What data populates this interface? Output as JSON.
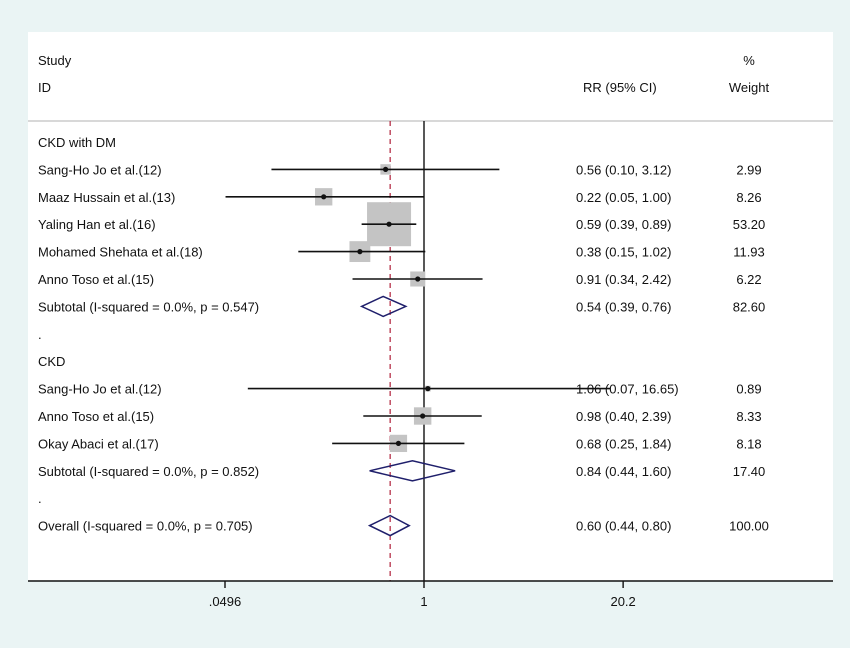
{
  "chart_data": {
    "type": "forest",
    "scale": "log",
    "headers": {
      "study": "Study",
      "id": "ID",
      "rr": "RR (95% CI)",
      "pct": "%",
      "weight": "Weight"
    },
    "xticks": [
      {
        "value": 0.0496,
        "label": ".0496"
      },
      {
        "value": 1,
        "label": "1"
      },
      {
        "value": 20.2,
        "label": "20.2"
      }
    ],
    "null_line": 1,
    "overall_line": 0.6,
    "rows": [
      {
        "kind": "group",
        "label": "CKD with DM"
      },
      {
        "kind": "study",
        "label": "Sang-Ho Jo et al.(12)",
        "rr": 0.56,
        "lo": 0.1,
        "hi": 3.12,
        "text": "0.56 (0.10, 3.12)",
        "weight": "2.99"
      },
      {
        "kind": "study",
        "label": "Maaz Hussain et al.(13)",
        "rr": 0.22,
        "lo": 0.05,
        "hi": 1.0,
        "text": "0.22 (0.05, 1.00)",
        "weight": "8.26"
      },
      {
        "kind": "study",
        "label": "Yaling Han et al.(16)",
        "rr": 0.59,
        "lo": 0.39,
        "hi": 0.89,
        "text": "0.59 (0.39, 0.89)",
        "weight": "53.20"
      },
      {
        "kind": "study",
        "label": "Mohamed Shehata et al.(18)",
        "rr": 0.38,
        "lo": 0.15,
        "hi": 1.02,
        "text": "0.38 (0.15, 1.02)",
        "weight": "11.93"
      },
      {
        "kind": "study",
        "label": "Anno Toso et al.(15)",
        "rr": 0.91,
        "lo": 0.34,
        "hi": 2.42,
        "text": "0.91 (0.34, 2.42)",
        "weight": "6.22"
      },
      {
        "kind": "summary",
        "label": "Subtotal  (I-squared = 0.0%, p = 0.547)",
        "rr": 0.54,
        "lo": 0.39,
        "hi": 0.76,
        "text": "0.54 (0.39, 0.76)",
        "weight": "82.60"
      },
      {
        "kind": "gap",
        "label": "."
      },
      {
        "kind": "group",
        "label": "CKD"
      },
      {
        "kind": "study",
        "label": "Sang-Ho Jo et al.(12)",
        "rr": 1.06,
        "lo": 0.07,
        "hi": 16.65,
        "text": "1.06 (0.07, 16.65)",
        "weight": "0.89"
      },
      {
        "kind": "study",
        "label": "Anno Toso et al.(15)",
        "rr": 0.98,
        "lo": 0.4,
        "hi": 2.39,
        "text": "0.98 (0.40, 2.39)",
        "weight": "8.33"
      },
      {
        "kind": "study",
        "label": "Okay Abaci et al.(17)",
        "rr": 0.68,
        "lo": 0.25,
        "hi": 1.84,
        "text": "0.68 (0.25, 1.84)",
        "weight": "8.18"
      },
      {
        "kind": "summary",
        "label": "Subtotal  (I-squared = 0.0%, p = 0.852)",
        "rr": 0.84,
        "lo": 0.44,
        "hi": 1.6,
        "text": "0.84 (0.44, 1.60)",
        "weight": "17.40"
      },
      {
        "kind": "gap",
        "label": "."
      },
      {
        "kind": "summary",
        "label": "Overall  (I-squared = 0.0%, p = 0.705)",
        "rr": 0.6,
        "lo": 0.44,
        "hi": 0.8,
        "text": "0.60 (0.44, 0.80)",
        "weight": "100.00"
      }
    ],
    "colors": {
      "diamond": "#1f1f6b",
      "square": "#c4c4c4",
      "overall_line": "#b0203a",
      "background": "#eaf4f4"
    }
  }
}
